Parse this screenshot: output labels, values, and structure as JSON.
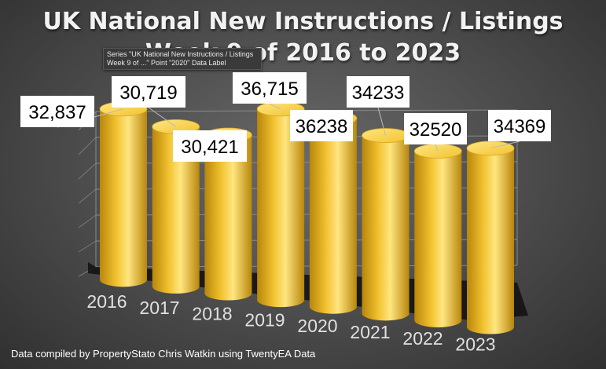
{
  "title": {
    "line1": "UK National New Instructions / Listings",
    "line2": "Week 9 of 2016 to 2023"
  },
  "tooltip": {
    "line1": "Series \"UK National New Instructions / Listings",
    "line2": "Week 9 of ...\" Point \"2020\" Data Label"
  },
  "footer": "Data compiled by PropertyStato Chris Watkin using TwentyEA Data",
  "colors": {
    "bar": "#f2c230",
    "bar_dark": "#b8860b",
    "bar_light": "#ffe680",
    "label_bg": "#ffffff",
    "label_text": "#000000",
    "axis_text": "#e0e0e0"
  },
  "chart_data": {
    "type": "bar",
    "title": "UK National New Instructions / Listings Week 9 of 2016 to 2023",
    "categories": [
      "2016",
      "2017",
      "2018",
      "2019",
      "2020",
      "2021",
      "2022",
      "2023"
    ],
    "values": [
      32837,
      30719,
      30421,
      36715,
      36238,
      34233,
      32520,
      34369
    ],
    "data_labels": [
      "32,837",
      "30,719",
      "30,421",
      "36,715",
      "36238",
      "34233",
      "32520",
      "34369"
    ],
    "style": "3d-cylinder",
    "grid": true,
    "legend": "none"
  }
}
